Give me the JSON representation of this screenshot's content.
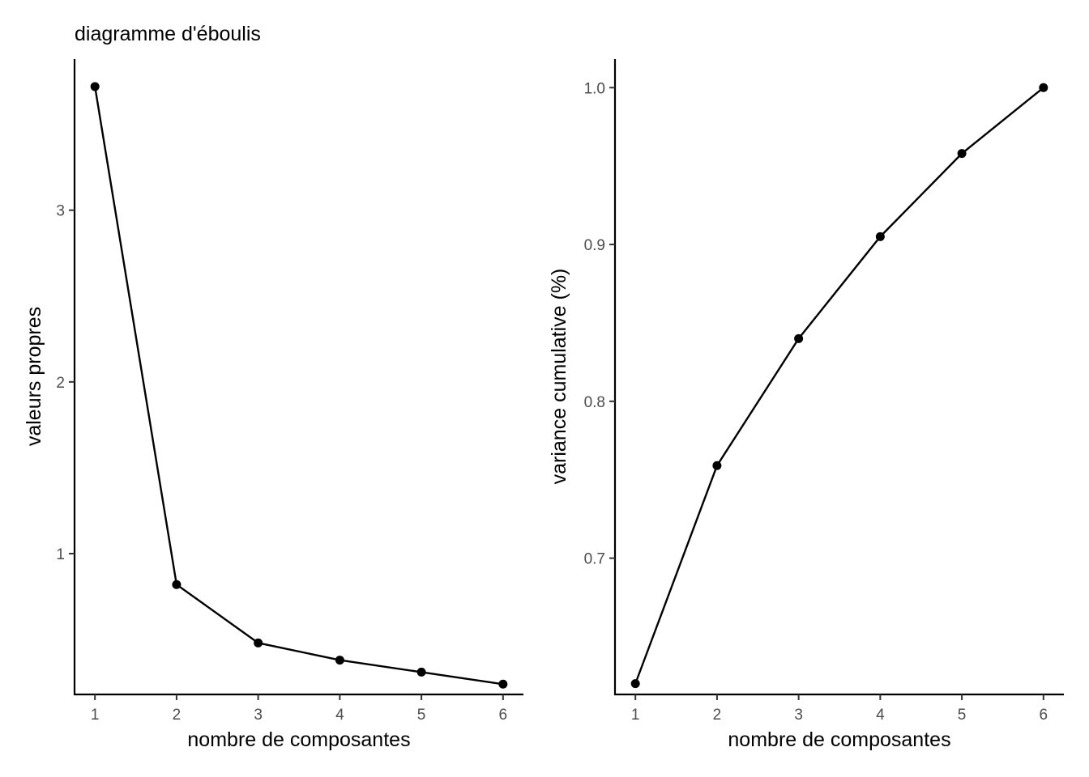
{
  "chart_data": [
    {
      "type": "line",
      "title": "diagramme d'éboulis",
      "xlabel": "nombre de composantes",
      "ylabel": "valeurs propres",
      "x": [
        1,
        2,
        3,
        4,
        5,
        6
      ],
      "values": [
        3.72,
        0.82,
        0.48,
        0.38,
        0.31,
        0.24
      ],
      "xlim": [
        0.75,
        6.25
      ],
      "ylim": [
        0.18,
        3.88
      ],
      "xticks": [
        1,
        2,
        3,
        4,
        5,
        6
      ],
      "yticks": [
        1,
        2,
        3
      ],
      "ytick_labels": [
        "1",
        "2",
        "3"
      ],
      "grid": false,
      "markers": true
    },
    {
      "type": "line",
      "title": "",
      "xlabel": "nombre de composantes",
      "ylabel": "variance cumulative (%)",
      "x": [
        1,
        2,
        3,
        4,
        5,
        6
      ],
      "values": [
        0.62,
        0.759,
        0.84,
        0.905,
        0.958,
        1.0
      ],
      "xlim": [
        0.75,
        6.25
      ],
      "ylim": [
        0.6131,
        1.0182
      ],
      "xticks": [
        1,
        2,
        3,
        4,
        5,
        6
      ],
      "yticks": [
        0.7,
        0.8,
        0.9,
        1.0
      ],
      "ytick_labels": [
        "0.7",
        "0.8",
        "0.9",
        "1.0"
      ],
      "grid": false,
      "markers": true
    }
  ]
}
